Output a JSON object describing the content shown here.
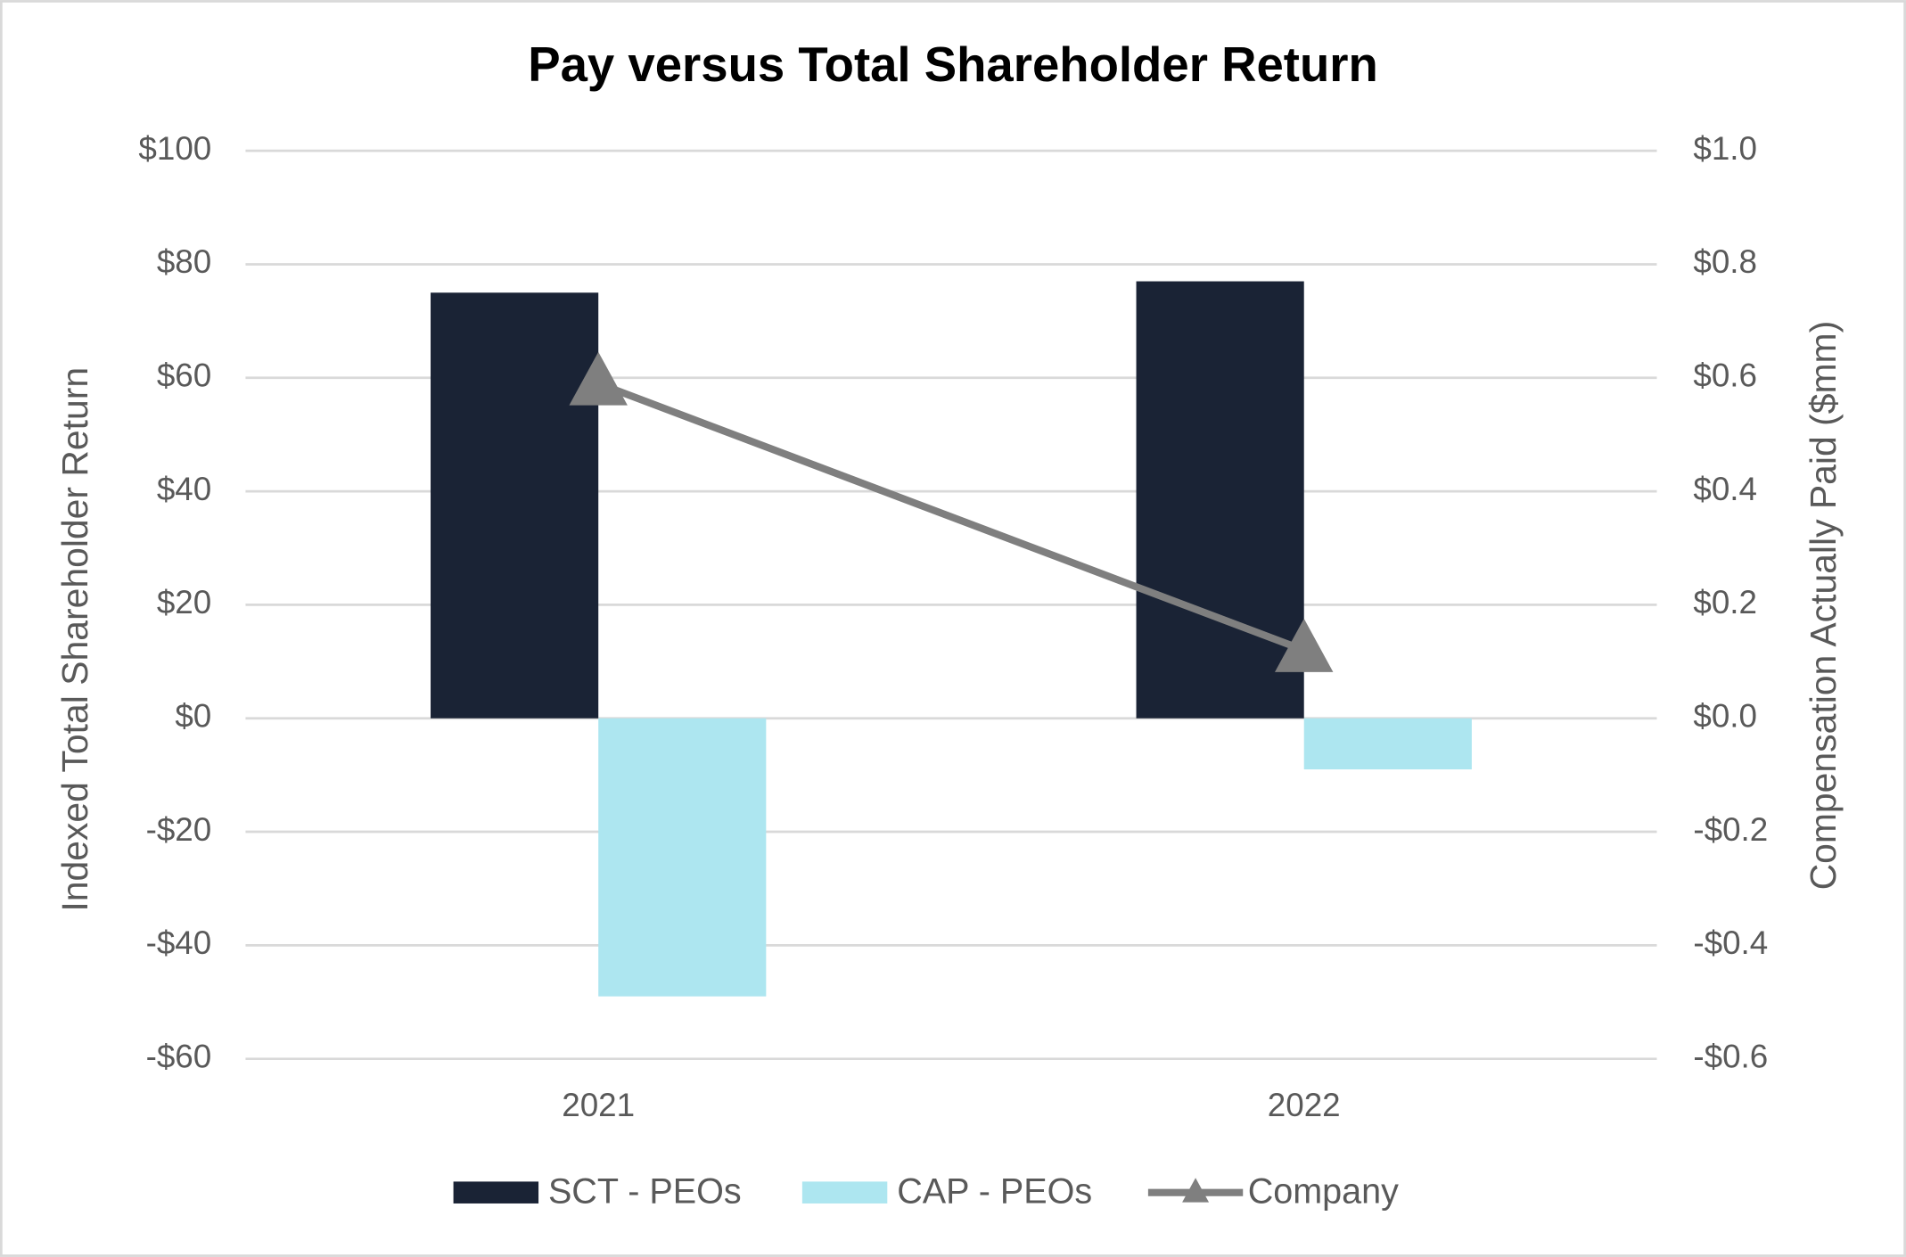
{
  "chart_data": {
    "type": "bar_line",
    "title": "Pay versus Total Shareholder Return",
    "y_label": "Indexed Total Shareholder Return",
    "y2_label": "Compensation Actually Paid ($mm)",
    "categories": [
      "2021",
      "2022"
    ],
    "series": [
      {
        "name": "SCT - PEOs",
        "type": "bar",
        "axis": "y2",
        "color": "#1a2335",
        "values": [
          0.75,
          0.77
        ]
      },
      {
        "name": "CAP - PEOs",
        "type": "bar",
        "axis": "y2",
        "color": "#ade6f0",
        "values": [
          -0.49,
          -0.09
        ]
      },
      {
        "name": "Company",
        "type": "line",
        "axis": "y",
        "color": "#7f7f7f",
        "values": [
          59,
          12
        ]
      }
    ],
    "ylim": [
      -60,
      100
    ],
    "yticks": [
      {
        "value": -60,
        "label": "-$60"
      },
      {
        "value": -40,
        "label": "-$40"
      },
      {
        "value": -20,
        "label": "-$20"
      },
      {
        "value": 0,
        "label": "$0"
      },
      {
        "value": 20,
        "label": "$20"
      },
      {
        "value": 40,
        "label": "$40"
      },
      {
        "value": 60,
        "label": "$60"
      },
      {
        "value": 80,
        "label": "$80"
      },
      {
        "value": 100,
        "label": "$100"
      }
    ],
    "y2lim": [
      -0.6,
      1.0
    ],
    "y2ticks": [
      {
        "value": -0.6,
        "label": "-$0.6"
      },
      {
        "value": -0.4,
        "label": "-$0.4"
      },
      {
        "value": -0.2,
        "label": "-$0.2"
      },
      {
        "value": 0,
        "label": "$0.0"
      },
      {
        "value": 0.2,
        "label": "$0.2"
      },
      {
        "value": 0.4,
        "label": "$0.4"
      },
      {
        "value": 0.6,
        "label": "$0.6"
      },
      {
        "value": 0.8,
        "label": "$0.8"
      },
      {
        "value": 1.0,
        "label": "$1.0"
      }
    ],
    "grid": true,
    "legend": "bottom"
  }
}
